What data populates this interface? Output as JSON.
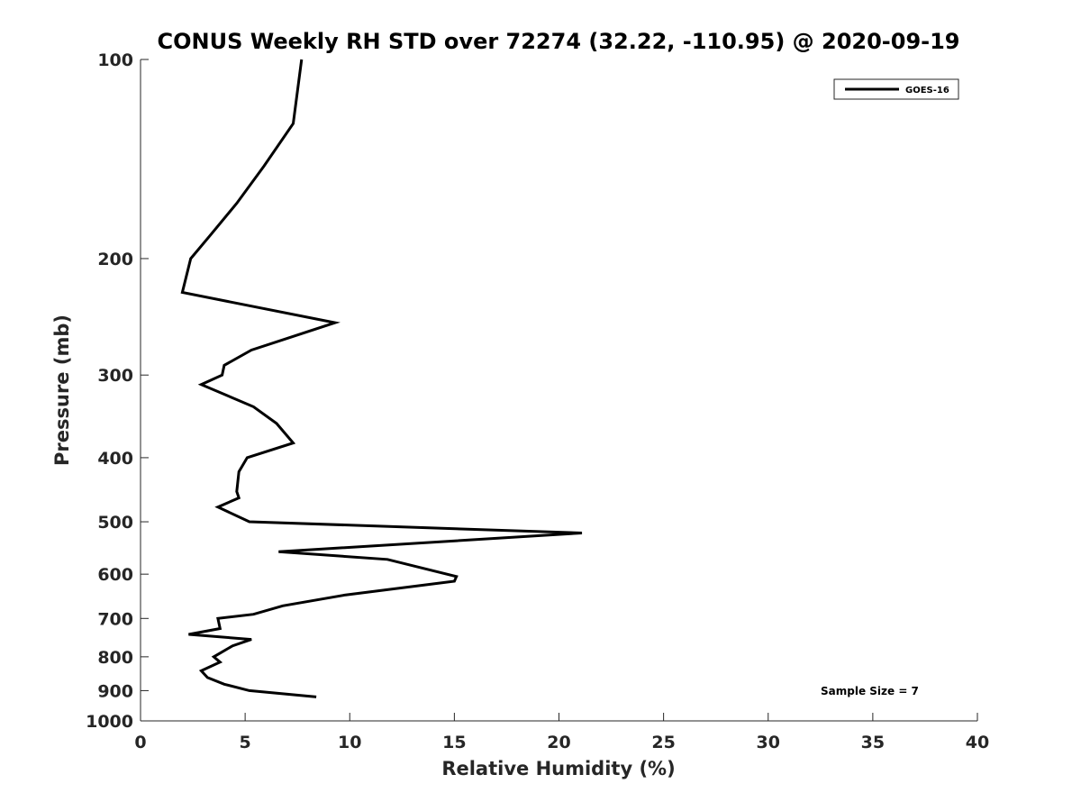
{
  "chart_data": {
    "type": "line",
    "title": "CONUS Weekly RH STD over 72274 (32.22, -110.95) @ 2020-09-19",
    "xlabel": "Relative Humidity (%)",
    "ylabel": "Pressure (mb)",
    "xlim": [
      0,
      40
    ],
    "ylim": [
      100,
      1000
    ],
    "y_scale": "log",
    "y_reversed": true,
    "x_ticks": [
      0,
      5,
      10,
      15,
      20,
      25,
      30,
      35,
      40
    ],
    "x_tick_labels": [
      "0",
      "5",
      "10",
      "15",
      "20",
      "25",
      "30",
      "35",
      "40"
    ],
    "y_ticks": [
      100,
      200,
      300,
      400,
      500,
      600,
      700,
      800,
      900,
      1000
    ],
    "y_tick_labels": [
      "100",
      "200",
      "300",
      "400",
      "500",
      "600",
      "700",
      "800",
      "900",
      "1000"
    ],
    "grid": false,
    "legend_position": "top-right",
    "annotation": "Sample Size = 7",
    "line_color": "#000000",
    "series": [
      {
        "name": "GOES-16",
        "x": [
          7.7,
          7.3,
          5.9,
          4.6,
          3.3,
          2.4,
          2.0,
          9.3,
          5.3,
          4.0,
          3.9,
          2.9,
          5.4,
          6.5,
          7.3,
          5.1,
          4.7,
          4.6,
          4.7,
          3.7,
          5.2,
          21.1,
          6.6,
          11.8,
          15.1,
          15.0,
          9.8,
          6.8,
          5.4,
          3.7,
          3.8,
          2.3,
          5.3,
          4.4,
          3.5,
          3.8,
          2.9,
          3.2,
          4.0,
          5.2,
          8.4
        ],
        "y": [
          100,
          125,
          145,
          165,
          185,
          200,
          225,
          250,
          275,
          290,
          300,
          310,
          335,
          355,
          380,
          400,
          420,
          450,
          460,
          475,
          500,
          520,
          555,
          570,
          605,
          615,
          645,
          670,
          690,
          700,
          725,
          740,
          753,
          770,
          800,
          815,
          840,
          860,
          880,
          900,
          920
        ]
      }
    ]
  }
}
